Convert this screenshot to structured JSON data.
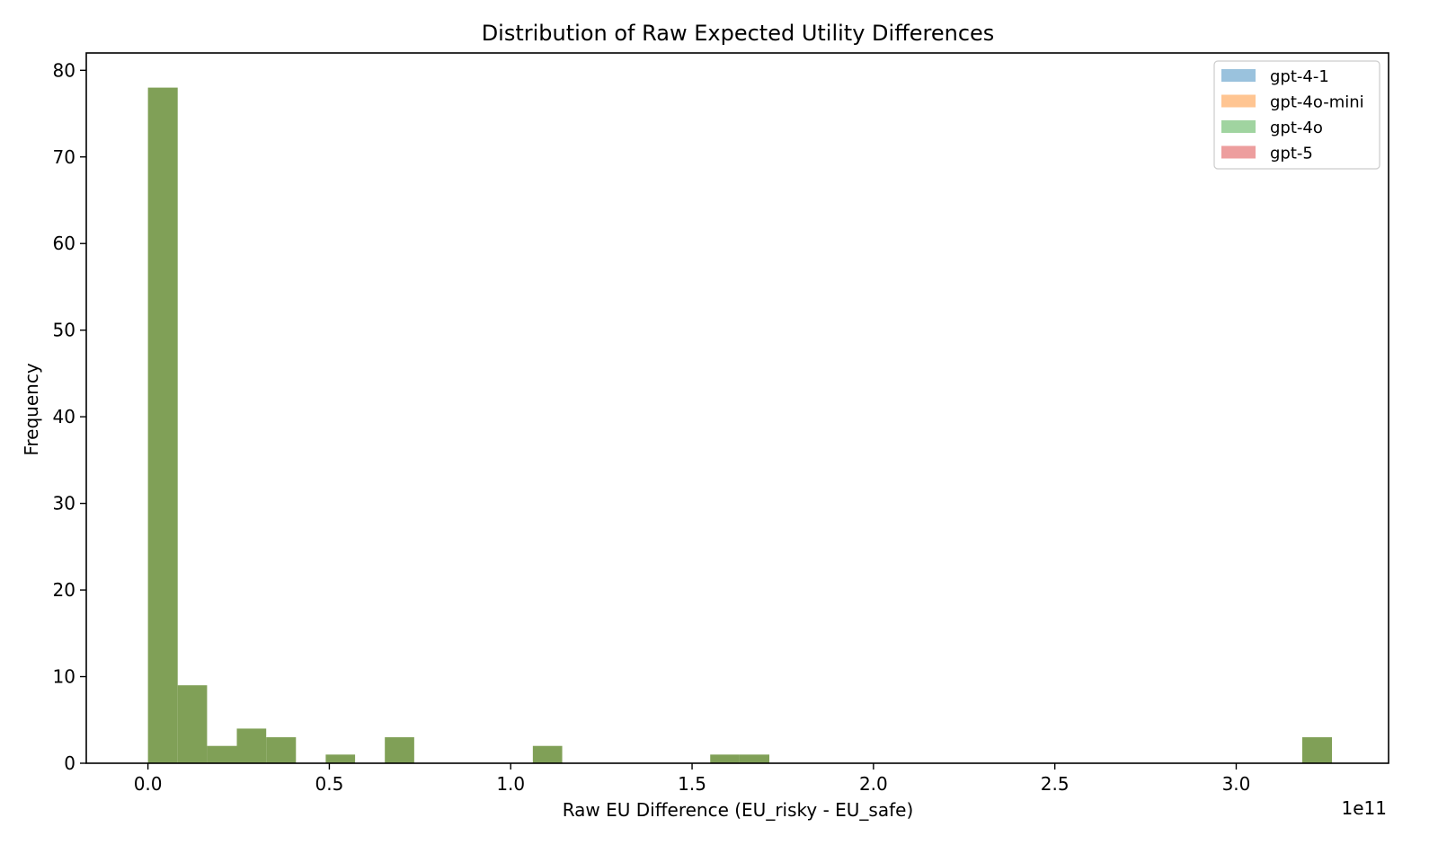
{
  "chart_data": {
    "type": "bar",
    "title": "Distribution of Raw Expected Utility Differences",
    "xlabel": "Raw EU Difference (EU_risky - EU_safe)",
    "ylabel": "Frequency",
    "x_offset_text": "1e11",
    "xlim": [
      -0.17,
      3.42
    ],
    "ylim": [
      0,
      82
    ],
    "xticks": [
      0.0,
      0.5,
      1.0,
      1.5,
      2.0,
      2.5,
      3.0
    ],
    "xtick_labels": [
      "0.0",
      "0.5",
      "1.0",
      "1.5",
      "2.0",
      "2.5",
      "3.0"
    ],
    "yticks": [
      0,
      10,
      20,
      30,
      40,
      50,
      60,
      70,
      80
    ],
    "ytick_labels": [
      "0",
      "10",
      "20",
      "30",
      "40",
      "50",
      "60",
      "70",
      "80"
    ],
    "grid": false,
    "legend_position": "top-right",
    "series": [
      {
        "name": "gpt-4-1",
        "color": "#1f77b4",
        "alpha": 0.45
      },
      {
        "name": "gpt-4o-mini",
        "color": "#ff7f0e",
        "alpha": 0.45
      },
      {
        "name": "gpt-4o",
        "color": "#2ca02c",
        "alpha": 0.45
      },
      {
        "name": "gpt-5",
        "color": "#d62728",
        "alpha": 0.45
      }
    ],
    "bins": [
      {
        "x0": 0.0,
        "x1": 0.082,
        "count": 78
      },
      {
        "x0": 0.082,
        "x1": 0.163,
        "count": 9
      },
      {
        "x0": 0.163,
        "x1": 0.245,
        "count": 2
      },
      {
        "x0": 0.245,
        "x1": 0.326,
        "count": 4
      },
      {
        "x0": 0.326,
        "x1": 0.408,
        "count": 3
      },
      {
        "x0": 0.49,
        "x1": 0.571,
        "count": 1
      },
      {
        "x0": 0.653,
        "x1": 0.734,
        "count": 3
      },
      {
        "x0": 1.061,
        "x1": 1.142,
        "count": 2
      },
      {
        "x0": 1.55,
        "x1": 1.631,
        "count": 1
      },
      {
        "x0": 1.631,
        "x1": 1.713,
        "count": 1
      },
      {
        "x0": 3.182,
        "x1": 3.264,
        "count": 3
      }
    ],
    "overlap_color": "#80a057"
  }
}
